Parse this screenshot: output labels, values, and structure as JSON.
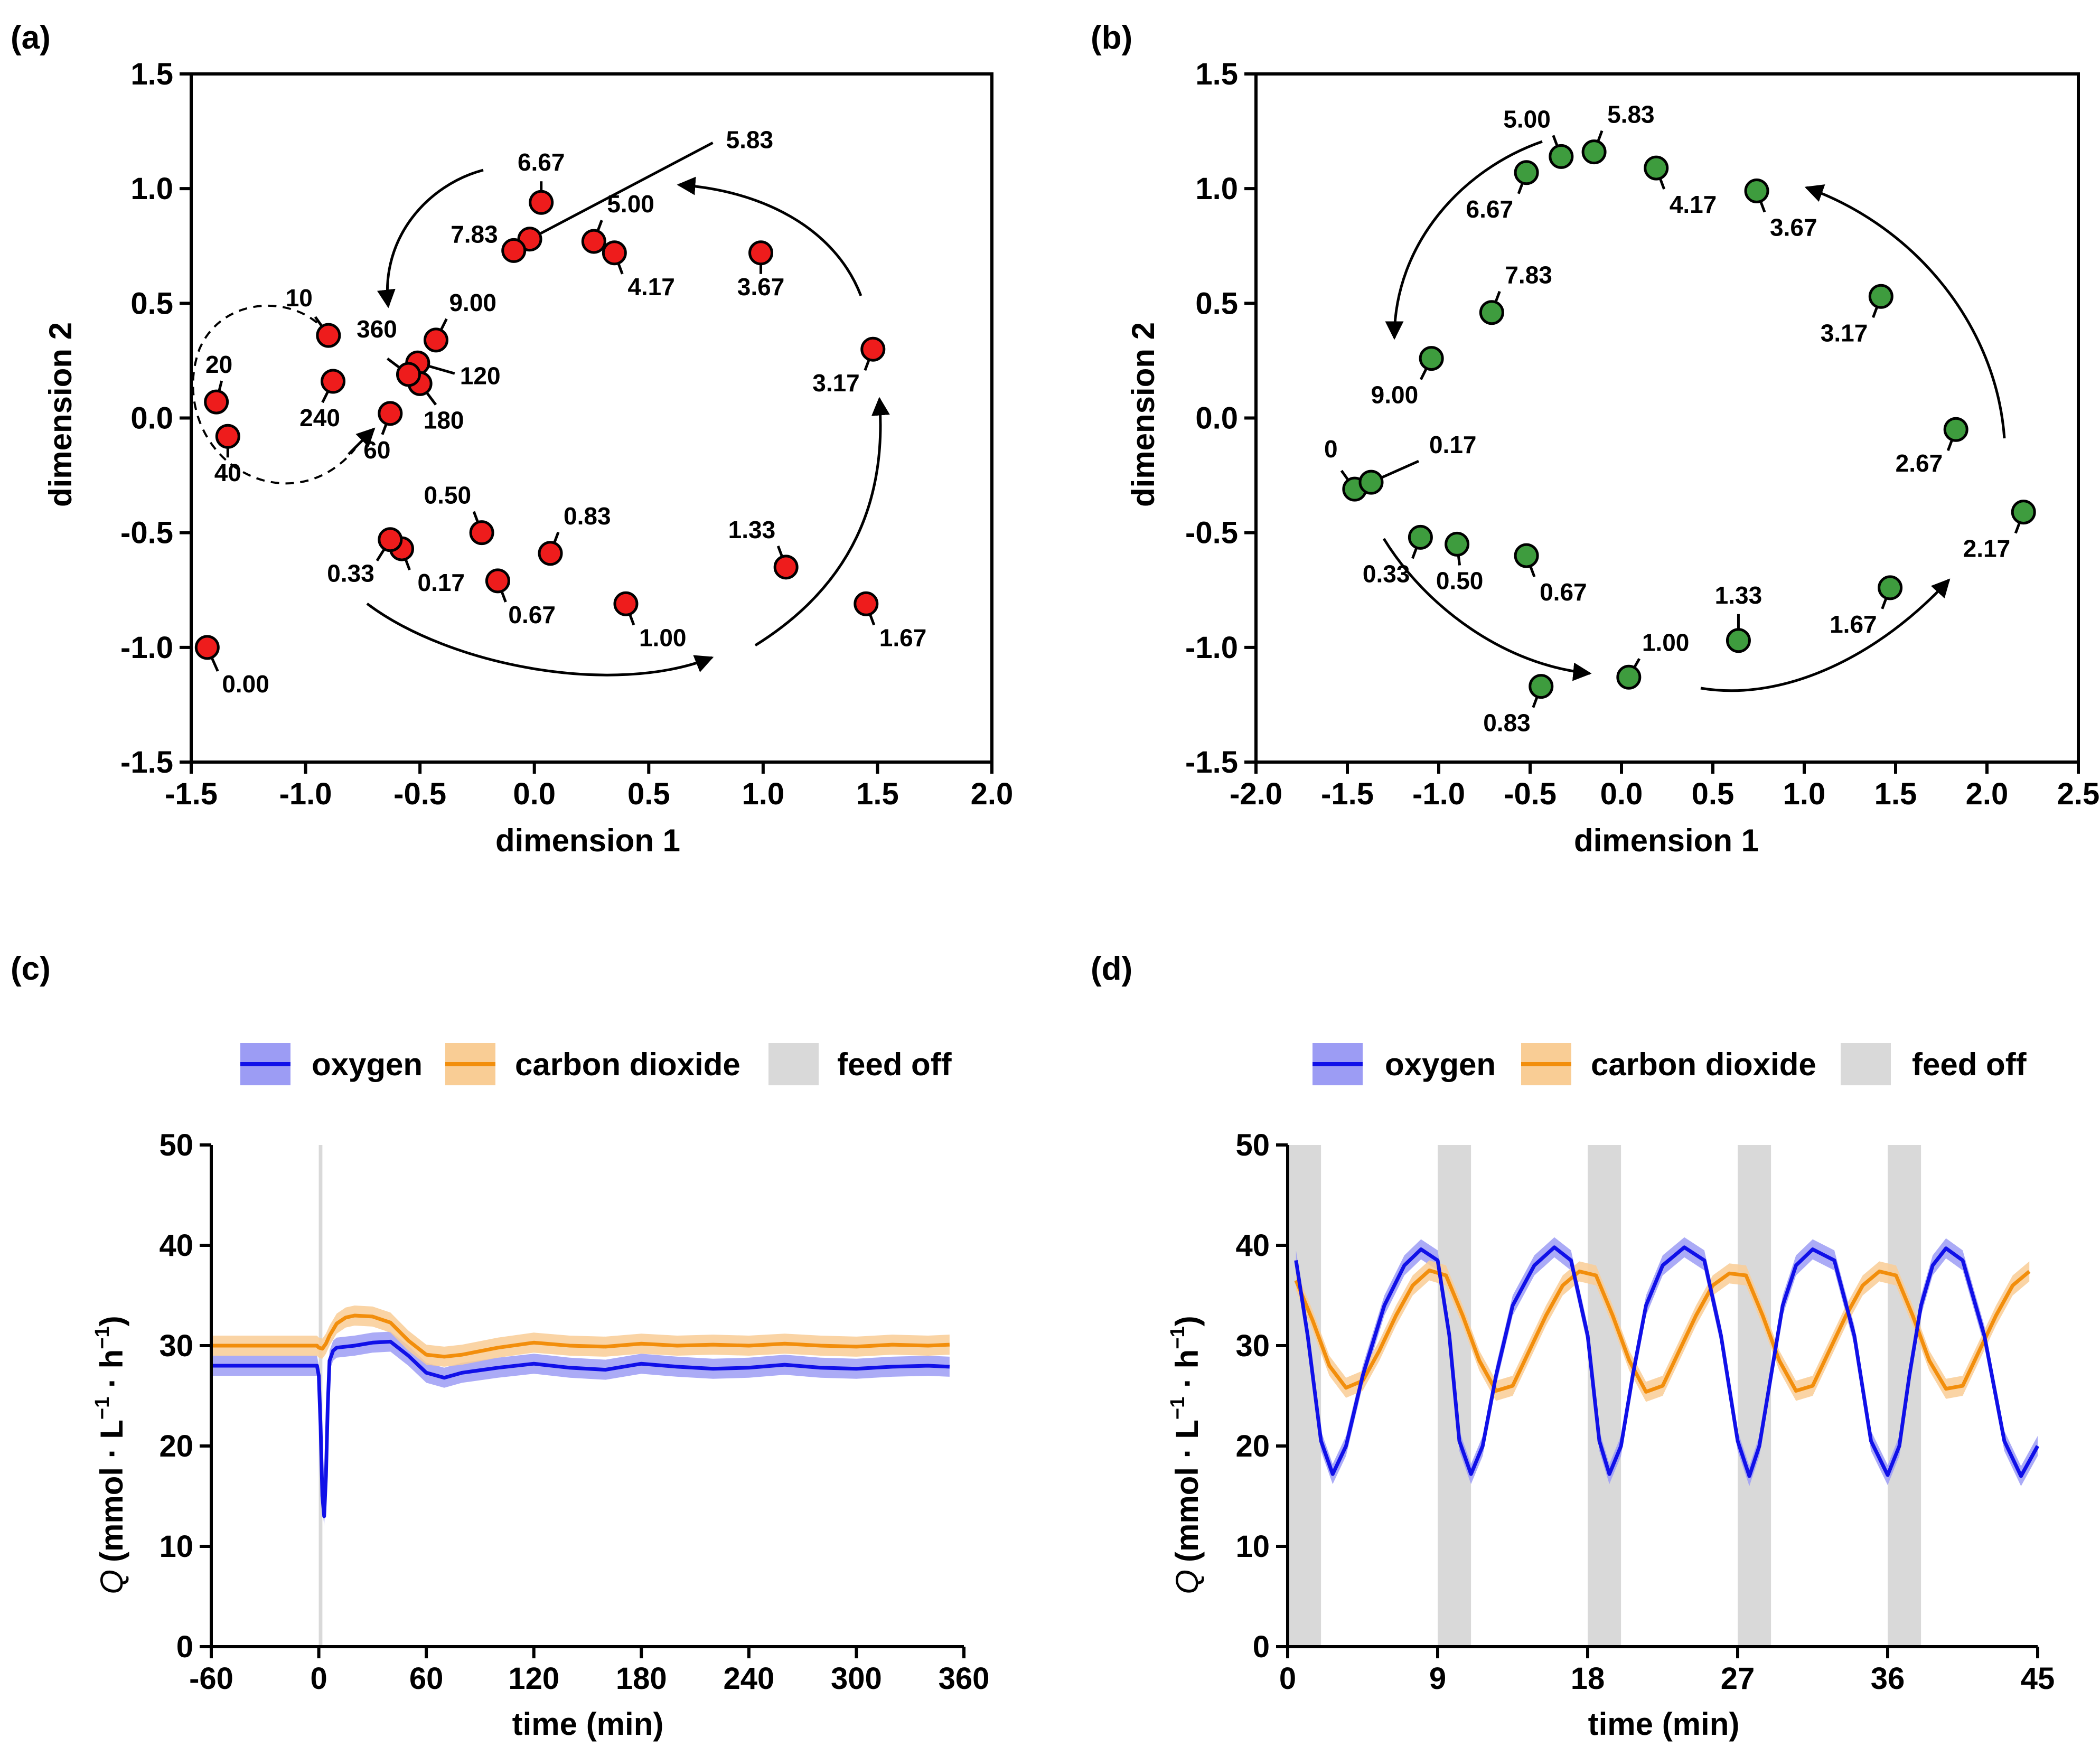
{
  "chart_data": [
    {
      "panel": "(a)",
      "type": "scatter",
      "xlabel": "dimension 1",
      "ylabel": "dimension 2",
      "xlim": [
        -1.5,
        2.0
      ],
      "ylim": [
        -1.5,
        1.5
      ],
      "xticks": [
        "-1.5",
        "-1.0",
        "-0.5",
        "0.0",
        "0.5",
        "1.0",
        "1.5",
        "2.0"
      ],
      "yticks": [
        "-1.5",
        "-1.0",
        "-0.5",
        "0.0",
        "0.5",
        "1.0",
        "1.5"
      ],
      "marker_color": "#ee1c1c",
      "points": [
        {
          "label": "0.00",
          "x": -1.43,
          "y": -1.0
        },
        {
          "label": "0.17",
          "x": -0.58,
          "y": -0.57
        },
        {
          "label": "0.33",
          "x": -0.63,
          "y": -0.53
        },
        {
          "label": "0.50",
          "x": -0.23,
          "y": -0.5
        },
        {
          "label": "0.67",
          "x": -0.16,
          "y": -0.71
        },
        {
          "label": "0.83",
          "x": 0.07,
          "y": -0.59
        },
        {
          "label": "1.00",
          "x": 0.4,
          "y": -0.81
        },
        {
          "label": "1.33",
          "x": 1.1,
          "y": -0.65
        },
        {
          "label": "1.67",
          "x": 1.45,
          "y": -0.81
        },
        {
          "label": "3.17",
          "x": 1.48,
          "y": 0.3
        },
        {
          "label": "3.67",
          "x": 0.99,
          "y": 0.72
        },
        {
          "label": "4.17",
          "x": 0.35,
          "y": 0.72
        },
        {
          "label": "5.00",
          "x": 0.26,
          "y": 0.77
        },
        {
          "label": "5.83",
          "x": -0.02,
          "y": 0.78
        },
        {
          "label": "6.67",
          "x": 0.03,
          "y": 0.94
        },
        {
          "label": "7.83",
          "x": -0.09,
          "y": 0.73
        },
        {
          "label": "9.00",
          "x": -0.43,
          "y": 0.34
        },
        {
          "label": "10",
          "x": -0.9,
          "y": 0.36
        },
        {
          "label": "20",
          "x": -1.39,
          "y": 0.07
        },
        {
          "label": "40",
          "x": -1.34,
          "y": -0.08
        },
        {
          "label": "60",
          "x": -0.63,
          "y": 0.02
        },
        {
          "label": "120",
          "x": -0.51,
          "y": 0.24
        },
        {
          "label": "180",
          "x": -0.5,
          "y": 0.15
        },
        {
          "label": "240",
          "x": -0.88,
          "y": 0.16
        },
        {
          "label": "360",
          "x": -0.55,
          "y": 0.19
        }
      ]
    },
    {
      "panel": "(b)",
      "type": "scatter",
      "xlabel": "dimension 1",
      "ylabel": "dimension 2",
      "xlim": [
        -2.0,
        2.5
      ],
      "ylim": [
        -1.5,
        1.5
      ],
      "xticks": [
        "-2.0",
        "-1.5",
        "-1.0",
        "-0.5",
        "0.0",
        "0.5",
        "1.0",
        "1.5",
        "2.0",
        "2.5"
      ],
      "yticks": [
        "-1.5",
        "-1.0",
        "-0.5",
        "0.0",
        "0.5",
        "1.0",
        "1.5"
      ],
      "marker_color": "#3e9c3e",
      "points": [
        {
          "label": "0",
          "x": -1.46,
          "y": -0.31
        },
        {
          "label": "0.17",
          "x": -1.37,
          "y": -0.28
        },
        {
          "label": "0.33",
          "x": -1.1,
          "y": -0.52
        },
        {
          "label": "0.50",
          "x": -0.9,
          "y": -0.55
        },
        {
          "label": "0.67",
          "x": -0.52,
          "y": -0.6
        },
        {
          "label": "0.83",
          "x": -0.44,
          "y": -1.17
        },
        {
          "label": "1.00",
          "x": 0.04,
          "y": -1.13
        },
        {
          "label": "1.33",
          "x": 0.64,
          "y": -0.97
        },
        {
          "label": "1.67",
          "x": 1.47,
          "y": -0.74
        },
        {
          "label": "2.17",
          "x": 2.2,
          "y": -0.41
        },
        {
          "label": "2.67",
          "x": 1.83,
          "y": -0.05
        },
        {
          "label": "3.17",
          "x": 1.42,
          "y": 0.53
        },
        {
          "label": "3.67",
          "x": 0.74,
          "y": 0.99
        },
        {
          "label": "4.17",
          "x": 0.19,
          "y": 1.09
        },
        {
          "label": "5.00",
          "x": -0.33,
          "y": 1.14
        },
        {
          "label": "5.83",
          "x": -0.15,
          "y": 1.16
        },
        {
          "label": "6.67",
          "x": -0.52,
          "y": 1.07
        },
        {
          "label": "7.83",
          "x": -0.71,
          "y": 0.46
        },
        {
          "label": "9.00",
          "x": -1.04,
          "y": 0.26
        }
      ]
    },
    {
      "panel": "(c)",
      "type": "line",
      "xlabel": "time (min)",
      "ylabel": "Q (mmol · L−1 · h−1)",
      "xlim": [
        -60,
        360
      ],
      "ylim": [
        0,
        50
      ],
      "xticks": [
        "-60",
        "0",
        "60",
        "120",
        "180",
        "240",
        "300",
        "360"
      ],
      "yticks": [
        "0",
        "10",
        "20",
        "30",
        "40",
        "50"
      ],
      "legend": [
        "oxygen",
        "carbon dioxide",
        "feed off"
      ],
      "feed_off": [
        [
          0,
          2
        ]
      ],
      "series": [
        {
          "name": "oxygen",
          "color": "#1010e8",
          "band": "#9c9cf4",
          "x": [
            -60,
            -1,
            0,
            1,
            2,
            3,
            4,
            5,
            6,
            8,
            10,
            20,
            30,
            40,
            50,
            60,
            70,
            80,
            100,
            120,
            140,
            160,
            180,
            200,
            220,
            240,
            260,
            280,
            300,
            320,
            340,
            352
          ],
          "y": [
            28,
            28,
            27,
            22,
            15,
            13,
            17,
            24,
            28.5,
            29.5,
            29.8,
            30,
            30.3,
            30.4,
            29,
            27.3,
            26.8,
            27.3,
            27.8,
            28.2,
            27.8,
            27.6,
            28.2,
            27.9,
            27.7,
            27.8,
            28.1,
            27.8,
            27.7,
            27.9,
            28,
            27.9
          ]
        },
        {
          "name": "carbon dioxide",
          "color": "#f28e0c",
          "band": "#f9cd95",
          "x": [
            -60,
            -1,
            0,
            2,
            4,
            6,
            10,
            15,
            20,
            30,
            40,
            50,
            60,
            70,
            80,
            100,
            120,
            140,
            160,
            180,
            200,
            220,
            240,
            260,
            280,
            300,
            320,
            340,
            352
          ],
          "y": [
            30,
            30,
            29.8,
            29.7,
            30.2,
            31,
            32.2,
            32.8,
            33,
            32.9,
            32.3,
            30.5,
            29.1,
            28.9,
            29.1,
            29.8,
            30.3,
            30,
            29.9,
            30.2,
            30,
            30.1,
            30,
            30.2,
            30,
            29.9,
            30.1,
            30,
            30.1
          ]
        }
      ]
    },
    {
      "panel": "(d)",
      "type": "line",
      "xlabel": "time (min)",
      "ylabel": "Q (mmol · L−1 · h−1)",
      "xlim": [
        0,
        45
      ],
      "ylim": [
        0,
        50
      ],
      "xticks": [
        "0",
        "9",
        "18",
        "27",
        "36",
        "45"
      ],
      "yticks": [
        "0",
        "10",
        "20",
        "30",
        "40",
        "50"
      ],
      "legend": [
        "oxygen",
        "carbon dioxide",
        "feed off"
      ],
      "feed_off": [
        [
          0,
          2
        ],
        [
          9,
          11
        ],
        [
          18,
          20
        ],
        [
          27,
          29
        ],
        [
          36,
          38
        ]
      ],
      "series": [
        {
          "name": "oxygen",
          "color": "#1010e8",
          "band": "#9c9cf4",
          "x": [
            0.5,
            1.2,
            2,
            2.7,
            3.5,
            4.5,
            5.8,
            7,
            8,
            9,
            9.7,
            10.3,
            11,
            11.7,
            12.5,
            13.5,
            14.8,
            16,
            17,
            18,
            18.7,
            19.3,
            20,
            20.7,
            21.5,
            22.5,
            23.8,
            25,
            26,
            27,
            27.7,
            28.3,
            29,
            29.7,
            30.5,
            31.5,
            32.8,
            34,
            35,
            36,
            36.7,
            37.3,
            38,
            38.7,
            39.5,
            40.5,
            41.8,
            43,
            44,
            45
          ],
          "y": [
            38.5,
            31,
            20.5,
            17.2,
            20,
            27,
            34,
            38,
            39.6,
            38.5,
            31,
            20.5,
            17.2,
            20,
            27,
            34,
            38,
            39.8,
            38.5,
            31,
            20.5,
            17.2,
            20,
            27,
            34,
            38,
            39.8,
            38.5,
            31,
            20.5,
            17,
            20,
            27,
            34,
            38,
            39.6,
            38.5,
            31,
            20.5,
            17.1,
            20,
            27,
            34,
            38,
            39.7,
            38.5,
            31,
            20.5,
            17,
            20
          ]
        },
        {
          "name": "carbon dioxide",
          "color": "#f28e0c",
          "band": "#f9cd95",
          "x": [
            0.5,
            1.5,
            2.5,
            3.5,
            4.5,
            5.5,
            6.5,
            7.5,
            8.5,
            9.5,
            10.5,
            11.5,
            12.5,
            13.5,
            14.5,
            15.5,
            16.5,
            17.5,
            18.5,
            19.5,
            20.5,
            21.5,
            22.5,
            23.5,
            24.5,
            25.5,
            26.5,
            27.5,
            28.5,
            29.5,
            30.5,
            31.5,
            32.5,
            33.5,
            34.5,
            35.5,
            36.5,
            37.5,
            38.5,
            39.5,
            40.5,
            41.5,
            42.5,
            43.5,
            44.5
          ],
          "y": [
            36.5,
            32.5,
            28,
            25.8,
            26.5,
            29.5,
            33,
            36,
            37.5,
            37,
            33,
            28.5,
            25.5,
            26,
            29.5,
            33,
            36,
            37.4,
            37,
            33,
            28.5,
            25.4,
            26,
            29.5,
            33,
            36,
            37.2,
            37,
            33,
            28.5,
            25.5,
            26,
            29.5,
            33,
            36,
            37.4,
            37,
            33,
            28.5,
            25.7,
            26,
            29.5,
            33,
            36,
            37.4
          ]
        }
      ]
    }
  ],
  "panels": {
    "a": {
      "tag": "(a)",
      "xlabel": "dimension 1",
      "ylabel": "dimension 2"
    },
    "b": {
      "tag": "(b)",
      "xlabel": "dimension 1",
      "ylabel": "dimension 2"
    },
    "c": {
      "tag": "(c)",
      "xlabel": "time (min)",
      "ylabel_q": "Q",
      "ylabel_unit": "(mmol · L",
      "ylabel_exp1": "−1",
      "ylabel_mid": " · h",
      "ylabel_exp2": "−1",
      "ylabel_close": ")"
    },
    "d": {
      "tag": "(d)",
      "xlabel": "time (min)",
      "ylabel_q": "Q",
      "ylabel_unit": "(mmol · L",
      "ylabel_exp1": "−1",
      "ylabel_mid": " · h",
      "ylabel_exp2": "−1",
      "ylabel_close": ")"
    }
  },
  "legend": {
    "oxygen": "oxygen",
    "carbon_dioxide": "carbon dioxide",
    "feed_off": "feed off"
  },
  "colors": {
    "oxygen": "#1010e8",
    "oxygen_band": "#9c9cf4",
    "co2": "#f28e0c",
    "co2_band": "#f9cd95",
    "feed_off": "#d9d9d9",
    "red": "#ee1c1c",
    "green": "#3e9c3e"
  }
}
